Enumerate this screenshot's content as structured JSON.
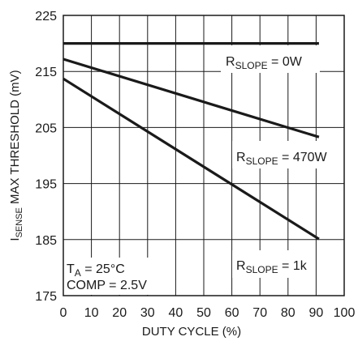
{
  "chart_data": {
    "type": "line",
    "title": "",
    "xlabel": "DUTY CYCLE (%)",
    "ylabel": {
      "main": "I",
      "sub": "SENSE",
      "rest": " MAX THRESHOLD (mV)"
    },
    "xlim": [
      0,
      100
    ],
    "ylim": [
      175,
      225
    ],
    "x_ticks": [
      "0",
      "10",
      "20",
      "30",
      "40",
      "50",
      "60",
      "70",
      "80",
      "90",
      "100"
    ],
    "y_ticks": [
      "175",
      "185",
      "195",
      "205",
      "215",
      "225"
    ],
    "grid": true,
    "series": [
      {
        "name": {
          "main": "R",
          "sub": "SLOPE",
          "rest": " = 0W"
        },
        "x": [
          0,
          91
        ],
        "y": [
          220,
          220
        ]
      },
      {
        "name": {
          "main": "R",
          "sub": "SLOPE",
          "rest": " = 470W"
        },
        "x": [
          0,
          91
        ],
        "y": [
          217.2,
          203.3
        ]
      },
      {
        "name": {
          "main": "R",
          "sub": "SLOPE",
          "rest": " = 1k"
        },
        "x": [
          0,
          91
        ],
        "y": [
          213.7,
          185.1
        ]
      }
    ],
    "annotations": [
      {
        "main": "T",
        "sub": "A",
        "rest": " = 25°C"
      },
      {
        "main": "COMP = 2.5V",
        "sub": "",
        "rest": ""
      }
    ]
  }
}
